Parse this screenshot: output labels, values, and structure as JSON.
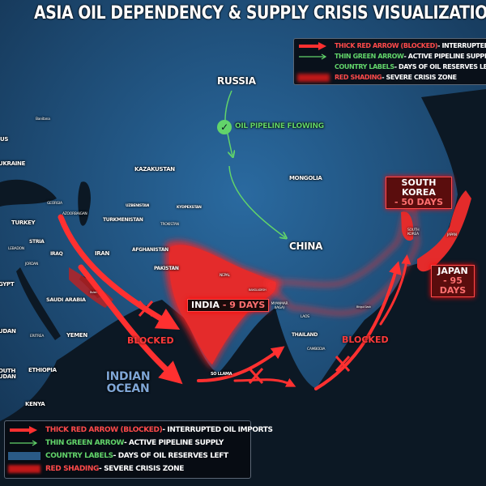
{
  "title": "ASIA OIL DEPENDENCY & SUPPLY CRISIS VISUALIZATION",
  "legend": {
    "items": [
      {
        "key": "THICK RED ARROW (BLOCKED)",
        "desc": " - INTERRUPTED OIL IMPORTS",
        "key_color": "#ff4a4a",
        "swatch": "red-arrow"
      },
      {
        "key": "THIN GREEN ARROW",
        "desc": " - ACTIVE PIPELINE SUPPLY",
        "key_color": "#62d46a",
        "swatch": "green-arrow"
      },
      {
        "key": "COUNTRY LABELS",
        "desc": " - DAYS OF OIL RESERVES LEFT",
        "key_color": "#62d46a",
        "swatch": "blue-box"
      },
      {
        "key": "RED SHADING",
        "desc": " - SEVERE CRISIS ZONE",
        "key_color": "#ff4a4a",
        "swatch": "red-glow"
      }
    ]
  },
  "pipeline": {
    "from": "RUSSIA",
    "to": "CHINA",
    "status": "OIL PIPELINE FLOWING",
    "status_icon": "check-circle-icon"
  },
  "callouts": {
    "india": {
      "name": "INDIA",
      "days": "- 9 DAYS"
    },
    "south_korea": {
      "name": "SOUTH KOREA",
      "days": "- 50 DAYS"
    },
    "japan": {
      "name": "JAPAN",
      "days": "- 95 DAYS"
    }
  },
  "blocked_labels": [
    "BLOCKED",
    "BLOCKED"
  ],
  "ocean": "INDIAN OCEAN",
  "labels": {
    "banitana": "Banitana",
    "us": "US",
    "ukraine": "UKRAINE",
    "kazakhstan": "KAZAKUSTAN",
    "mongolia": "MONGOLIA",
    "georgia": "GEORGIA",
    "azerbaijan": "AZOORBAIGAN",
    "uzbekistan": "UZBENISTAN",
    "kyrgyzstan": "KYDPEXSTAN",
    "turkey": "TURKEY",
    "turkmenistan": "TURKMENISTAN",
    "tajikistan": "TROKISTAN",
    "syria": "STRIA",
    "lebanon": "LEBADON",
    "iraq": "IRAQ",
    "iran": "IRAN",
    "afghanistan": "AFGHANISTAN",
    "jordan": "JORDAN",
    "pakistan": "PAKISTAN",
    "nepal": "NEPAL",
    "bangladesh": "BANGLADESH",
    "myanmar": "MYANMAR (IAGA)",
    "laos": "LAOS",
    "thailand": "THAILAND",
    "cambodia": "CAMBODIA",
    "city_cn": "Bhigui Gash",
    "south_korea_small": "SOUTH KOREA",
    "japan_small": "JAPAN",
    "egypt": "GYPT",
    "saudi": "SAUDI ARABIA",
    "sudan": "UDAN",
    "eritrea": "ERITREA",
    "yemen": "YEMEN",
    "south_sudan": "OUTH UDAN",
    "ethiopia": "ETHIOPIA",
    "kenya": "KENYA",
    "sri_lanka": "SO LLAMA",
    "qatar": "Bulan"
  },
  "colors": {
    "land": "#1f4c76",
    "ocean": "#0c1824",
    "crisis": "#e42b2b",
    "pipeline": "#62d46a",
    "arrow": "#ff3030"
  }
}
